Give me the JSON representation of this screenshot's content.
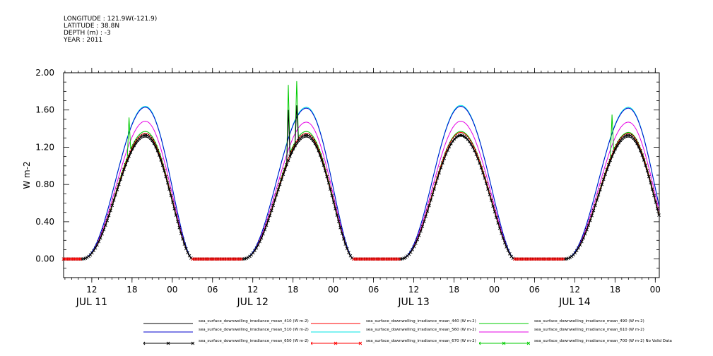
{
  "header": {
    "longitude": "LONGITUDE : 121.9W(-121.9)",
    "latitude": "LATITUDE : 38.8N",
    "depth": "DEPTH (m) : -3",
    "year": "YEAR : 2011"
  },
  "chart_data": {
    "type": "line",
    "ylabel": "W m-2",
    "ylim": [
      -0.2,
      2.0
    ],
    "yticks": [
      "0.00",
      "0.40",
      "0.80",
      "1.20",
      "1.60",
      "2.00"
    ],
    "ytick_values": [
      0.0,
      0.4,
      0.8,
      1.2,
      1.6,
      2.0
    ],
    "xtick_labels": [
      "12",
      "18",
      "00",
      "06",
      "12",
      "18",
      "00",
      "06",
      "12",
      "18",
      "00",
      "06",
      "12",
      "18",
      "00"
    ],
    "xtick_hours": [
      12,
      18,
      24,
      30,
      36,
      42,
      48,
      54,
      60,
      66,
      72,
      78,
      84,
      90,
      96
    ],
    "xrange_hours": [
      7.8,
      96.6
    ],
    "day_labels": [
      "JUL 11",
      "JUL 12",
      "JUL 13",
      "JUL 14"
    ],
    "day_label_hours": [
      12,
      36,
      60,
      84
    ],
    "days": [
      {
        "name": "JUL 11",
        "rise": 10.5,
        "peak": 20.0,
        "set": 27.0,
        "peak_values": [
          1.31,
          1.63,
          1.35,
          1.37,
          1.64,
          1.48,
          1.33
        ]
      },
      {
        "name": "JUL 12",
        "rise": 34.5,
        "peak": 44.0,
        "set": 51.0,
        "peak_values": [
          1.31,
          1.62,
          1.35,
          1.37,
          1.63,
          1.47,
          1.33
        ]
      },
      {
        "name": "JUL 13",
        "rise": 58.0,
        "peak": 67.0,
        "set": 75.0,
        "peak_values": [
          1.32,
          1.64,
          1.36,
          1.37,
          1.65,
          1.48,
          1.33
        ]
      },
      {
        "name": "JUL 14",
        "rise": 82.5,
        "peak": 92.0,
        "set": 99.0,
        "peak_values": [
          1.31,
          1.62,
          1.35,
          1.36,
          1.63,
          1.47,
          1.33
        ]
      }
    ],
    "end_values_at_96_3": [
      0.58,
      0.72,
      0.62,
      0.63,
      0.74,
      0.67,
      0.6
    ],
    "spikes": [
      {
        "hour": 41.2,
        "series": 4,
        "value": 1.87
      },
      {
        "hour": 41.2,
        "series": 7,
        "value": 1.6
      },
      {
        "hour": 42.6,
        "series": 4,
        "value": 1.91
      },
      {
        "hour": 42.6,
        "series": 7,
        "value": 1.65
      },
      {
        "hour": 17.6,
        "series": 4,
        "value": 1.52
      },
      {
        "hour": 89.6,
        "series": 4,
        "value": 1.55
      }
    ],
    "series": [
      {
        "name": "sea_surface_downwelling_irradiance_mean_410 (W m-2)",
        "color": "#000000",
        "marker": "none"
      },
      {
        "name": "sea_surface_downwelling_irradiance_mean_510 (W m-2)",
        "color": "#0000cc",
        "marker": "none"
      },
      {
        "name": "sea_surface_downwelling_irradiance_mean_440 (W m-2)",
        "color": "#ff0000",
        "marker": "none"
      },
      {
        "name": "sea_surface_downwelling_irradiance_mean_490 (W m-2)",
        "color": "#00cc00",
        "marker": "none"
      },
      {
        "name": "sea_surface_downwelling_irradiance_mean_560 (W m-2)",
        "color": "#00e5e5",
        "marker": "none"
      },
      {
        "name": "sea_surface_downwelling_irradiance_mean_610 (W m-2)",
        "color": "#e600e6",
        "marker": "none"
      },
      {
        "name": "sea_surface_downwelling_irradiance_mean_650 (W m-2)",
        "color": "#000000",
        "marker": "x"
      },
      {
        "name": "sea_surface_downwelling_irradiance_mean_670 (W m-2)",
        "color": "#ff0000",
        "marker": "x"
      },
      {
        "name": "sea_surface_downwelling_irradiance_mean_700 (W m-2) No Valid Data",
        "color": "#00cc00",
        "marker": "x"
      }
    ],
    "legend_order": [
      0,
      2,
      3,
      1,
      4,
      5,
      6,
      7,
      8
    ]
  }
}
